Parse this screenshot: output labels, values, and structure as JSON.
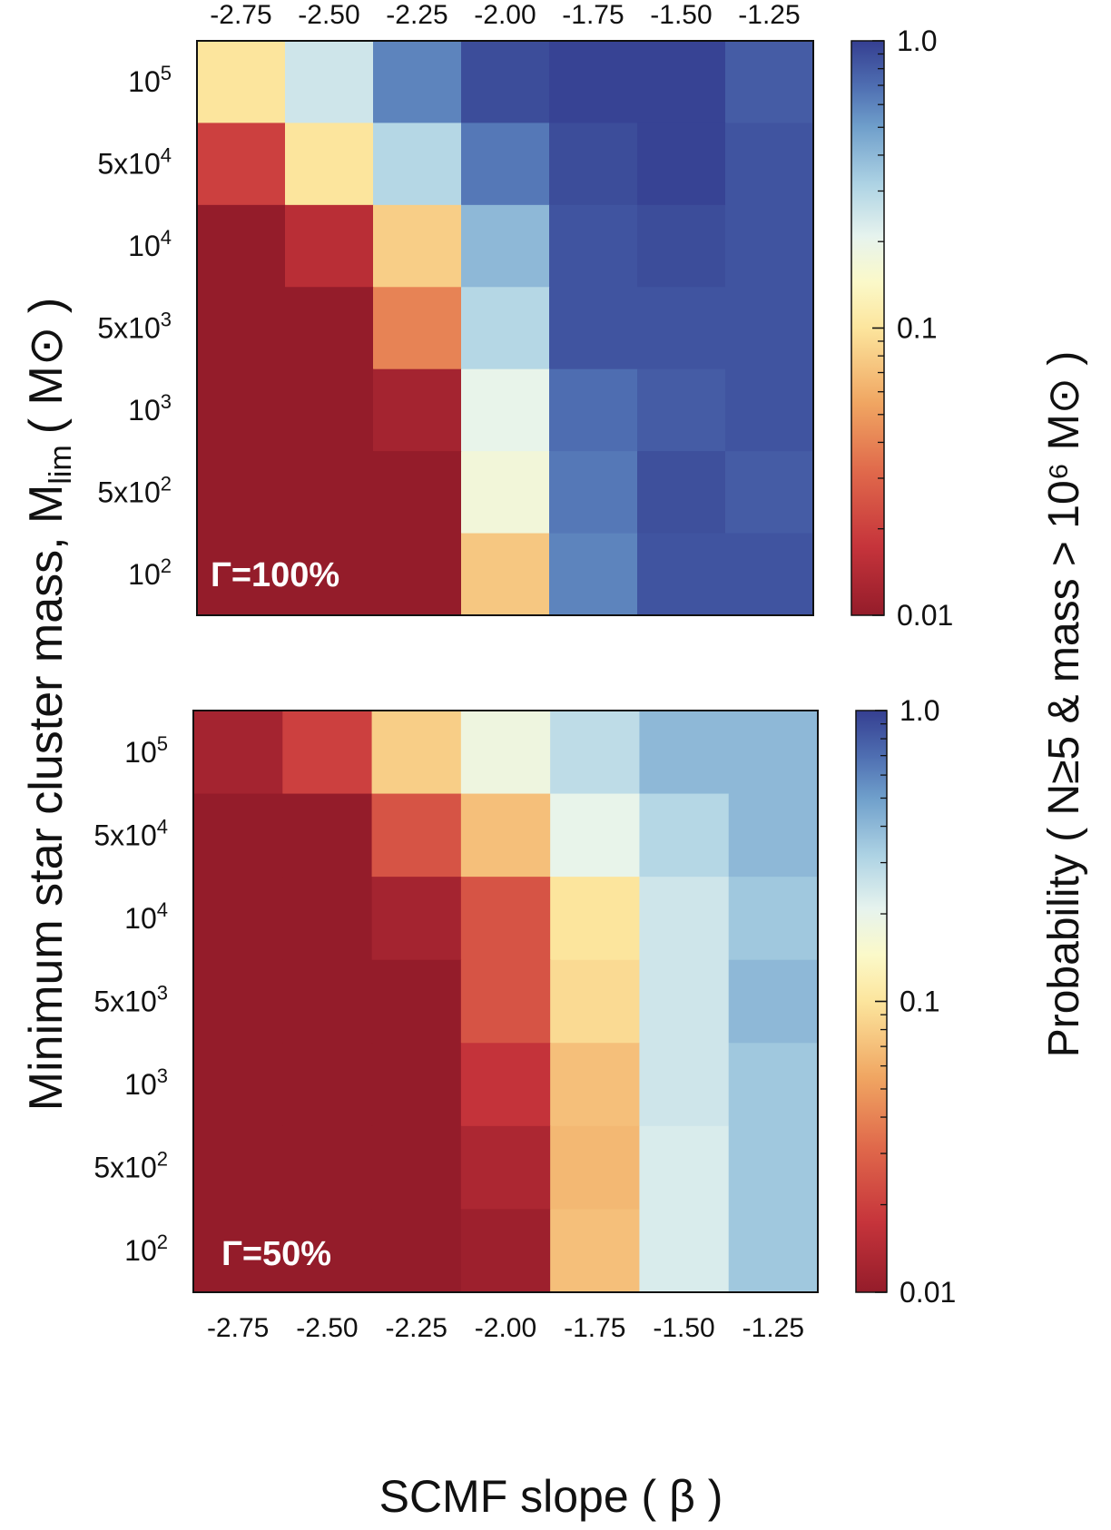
{
  "chart_data": [
    {
      "type": "heatmap",
      "panel": "top",
      "annotation": "Γ=100%",
      "x": [
        "-2.75",
        "-2.50",
        "-2.25",
        "-2.00",
        "-1.75",
        "-1.50",
        "-1.25"
      ],
      "y": [
        "10^5",
        "5x10^4",
        "10^4",
        "5x10^3",
        "10^3",
        "5x10^2",
        "10^2"
      ],
      "y_labels": [
        {
          "base": "10",
          "sup": "5"
        },
        {
          "base": "5x10",
          "sup": "4"
        },
        {
          "base": "10",
          "sup": "4"
        },
        {
          "base": "5x10",
          "sup": "3"
        },
        {
          "base": "10",
          "sup": "3"
        },
        {
          "base": "5x10",
          "sup": "2"
        },
        {
          "base": "10",
          "sup": "2"
        }
      ],
      "values": [
        [
          0.1,
          0.25,
          0.6,
          0.9,
          0.97,
          0.97,
          0.8
        ],
        [
          0.02,
          0.1,
          0.3,
          0.65,
          0.9,
          0.97,
          0.85
        ],
        [
          0.01,
          0.015,
          0.08,
          0.4,
          0.85,
          0.9,
          0.85
        ],
        [
          0.01,
          0.01,
          0.04,
          0.3,
          0.85,
          0.85,
          0.85
        ],
        [
          0.01,
          0.01,
          0.012,
          0.2,
          0.7,
          0.8,
          0.85
        ],
        [
          0.01,
          0.01,
          0.01,
          0.17,
          0.65,
          0.88,
          0.8
        ],
        [
          0.01,
          0.01,
          0.01,
          0.075,
          0.6,
          0.85,
          0.85
        ]
      ],
      "x_ticks_position": "top",
      "colorbar": {
        "label": "Probability ( N≥5 & mass > 10⁶ M⊙ )",
        "scale": "log",
        "range": [
          0.01,
          1.0
        ],
        "ticks": [
          "1.0",
          "0.1",
          "0.01"
        ],
        "colormap": "RdYlBu"
      }
    },
    {
      "type": "heatmap",
      "panel": "bottom",
      "annotation": "Γ=50%",
      "x": [
        "-2.75",
        "-2.50",
        "-2.25",
        "-2.00",
        "-1.75",
        "-1.50",
        "-1.25"
      ],
      "y": [
        "10^5",
        "5x10^4",
        "10^4",
        "5x10^3",
        "10^3",
        "5x10^2",
        "10^2"
      ],
      "y_labels": [
        {
          "base": "10",
          "sup": "5"
        },
        {
          "base": "5x10",
          "sup": "4"
        },
        {
          "base": "10",
          "sup": "4"
        },
        {
          "base": "5x10",
          "sup": "3"
        },
        {
          "base": "10",
          "sup": "3"
        },
        {
          "base": "5x10",
          "sup": "2"
        },
        {
          "base": "10",
          "sup": "2"
        }
      ],
      "values": [
        [
          0.012,
          0.02,
          0.08,
          0.18,
          0.28,
          0.4,
          0.4
        ],
        [
          0.01,
          0.01,
          0.025,
          0.07,
          0.2,
          0.3,
          0.4
        ],
        [
          0.01,
          0.01,
          0.012,
          0.025,
          0.1,
          0.25,
          0.35
        ],
        [
          0.01,
          0.01,
          0.01,
          0.025,
          0.09,
          0.25,
          0.4
        ],
        [
          0.01,
          0.01,
          0.01,
          0.017,
          0.07,
          0.25,
          0.35
        ],
        [
          0.01,
          0.01,
          0.01,
          0.013,
          0.065,
          0.23,
          0.35
        ],
        [
          0.01,
          0.01,
          0.01,
          0.011,
          0.07,
          0.23,
          0.35
        ]
      ],
      "x_ticks_position": "bottom",
      "colorbar": {
        "label": "Probability ( N≥5 & mass > 10⁶ M⊙ )",
        "scale": "log",
        "range": [
          0.01,
          1.0
        ],
        "ticks": [
          "1.0",
          "0.1",
          "0.01"
        ],
        "colormap": "RdYlBu"
      }
    }
  ],
  "labels": {
    "xlabel": "SCMF slope ( β )",
    "ylabel_main": "Minimum star cluster mass, M",
    "ylabel_sub": "lim",
    "ylabel_unit": "( M⊙ )",
    "colorbar_label": "Probability ( N≥5 & mass > 10⁶ M⊙ )"
  }
}
